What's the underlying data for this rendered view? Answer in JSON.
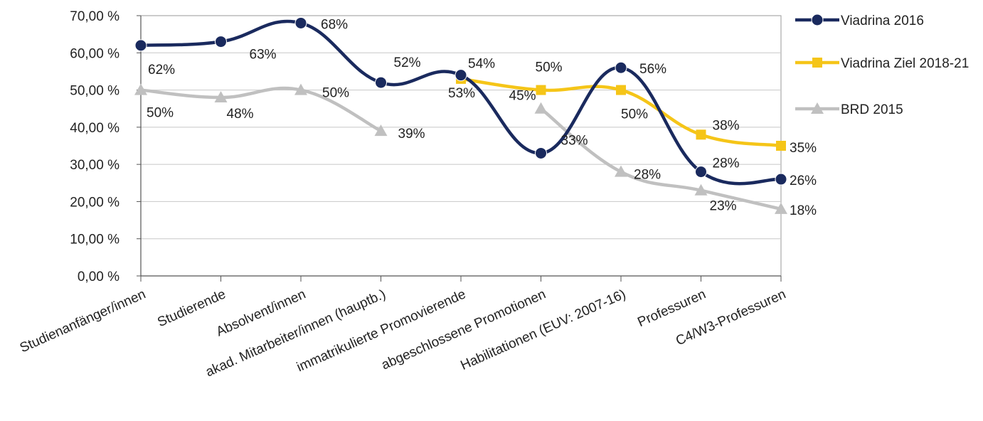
{
  "chart_data": {
    "type": "line",
    "categories": [
      "Studienanfänger/innen",
      "Studierende",
      "Absolvent/innen",
      "akad. Mitarbeiter/innen (hauptb.)",
      "immatrikulierte Promovierende",
      "abgeschlossene Promotionen",
      "Habilitationen (EUV: 2007-16)",
      "Professuren",
      "C4/W3-Professuren"
    ],
    "yticks": [
      "0,00 %",
      "10,00 %",
      "20,00 %",
      "30,00 %",
      "40,00 %",
      "50,00 %",
      "60,00 %",
      "70,00 %"
    ],
    "ylim": [
      0,
      70
    ],
    "grid": true,
    "legend_position": "right",
    "series": [
      {
        "name": "Viadrina 2016",
        "color": "#1a2a5e",
        "marker": "circle",
        "values": [
          62,
          63,
          68,
          52,
          54,
          33,
          56,
          28,
          26
        ],
        "labels": [
          "62%",
          "63%",
          "68%",
          "52%",
          "54%",
          "33%",
          "56%",
          "28%",
          "26%"
        ]
      },
      {
        "name": "Viadrina Ziel 2018-21",
        "color": "#f5c518",
        "marker": "square",
        "values": [
          null,
          null,
          null,
          null,
          53,
          50,
          50,
          38,
          35
        ],
        "labels": [
          null,
          null,
          null,
          null,
          "53%",
          "50%",
          "50%",
          "38%",
          "35%"
        ]
      },
      {
        "name": "BRD 2015",
        "color": "#c0c0c0",
        "marker": "triangle",
        "values": [
          50,
          48,
          50,
          39,
          null,
          45,
          28,
          23,
          18
        ],
        "labels": [
          "50%",
          "48%",
          "50%",
          "39%",
          null,
          "45%",
          "28%",
          "23%",
          "18%"
        ]
      }
    ]
  }
}
